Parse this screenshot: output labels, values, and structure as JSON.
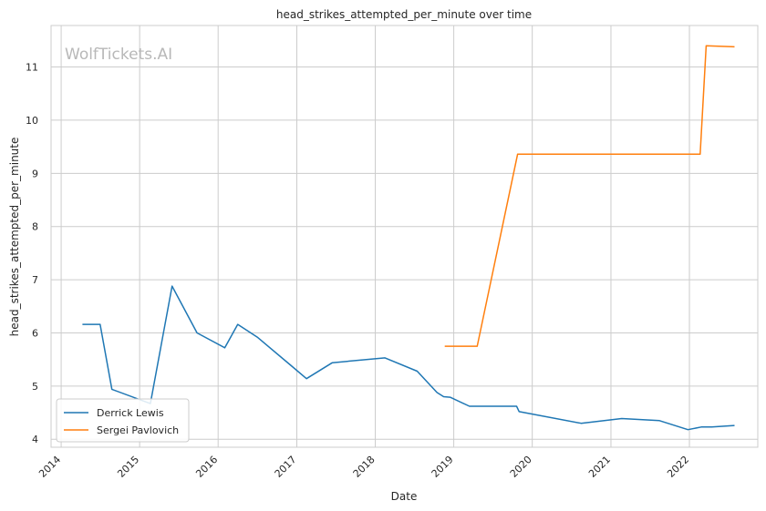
{
  "chart_data": {
    "type": "line",
    "title": "head_strikes_attempted_per_minute over time",
    "xlabel": "Date",
    "ylabel": "head_strikes_attempted_per_minute",
    "watermark": "WolfTickets.AI",
    "xlim": [
      "2013-11-15",
      "2022-11-15"
    ],
    "ylim": [
      3.85,
      11.78
    ],
    "x_ticks": [
      "2014",
      "2015",
      "2016",
      "2017",
      "2018",
      "2019",
      "2020",
      "2021",
      "2022"
    ],
    "y_ticks": [
      4,
      5,
      6,
      7,
      8,
      9,
      10,
      11
    ],
    "grid": true,
    "legend_position": "lower-left",
    "series": [
      {
        "name": "Derrick Lewis",
        "color": "#1f77b4",
        "points": [
          [
            "2014-04-10",
            6.16
          ],
          [
            "2014-07-01",
            6.16
          ],
          [
            "2014-08-25",
            4.94
          ],
          [
            "2015-02-20",
            4.67
          ],
          [
            "2015-06-01",
            6.88
          ],
          [
            "2015-09-25",
            6.0
          ],
          [
            "2016-02-01",
            5.72
          ],
          [
            "2016-04-01",
            6.16
          ],
          [
            "2016-07-01",
            5.92
          ],
          [
            "2016-12-01",
            5.4
          ],
          [
            "2017-02-15",
            5.14
          ],
          [
            "2017-06-15",
            5.44
          ],
          [
            "2018-02-15",
            5.53
          ],
          [
            "2018-07-15",
            5.28
          ],
          [
            "2018-10-15",
            4.88
          ],
          [
            "2018-11-15",
            4.8
          ],
          [
            "2018-12-15",
            4.79
          ],
          [
            "2019-03-15",
            4.62
          ],
          [
            "2019-10-20",
            4.62
          ],
          [
            "2019-11-01",
            4.52
          ],
          [
            "2020-08-15",
            4.3
          ],
          [
            "2021-02-20",
            4.39
          ],
          [
            "2021-08-15",
            4.35
          ],
          [
            "2021-12-25",
            4.18
          ],
          [
            "2022-02-25",
            4.23
          ],
          [
            "2022-04-15",
            4.23
          ],
          [
            "2022-07-30",
            4.26
          ]
        ]
      },
      {
        "name": "Sergei Pavlovich",
        "color": "#ff7f0e",
        "points": [
          [
            "2018-11-20",
            5.75
          ],
          [
            "2019-04-20",
            5.75
          ],
          [
            "2019-10-25",
            9.36
          ],
          [
            "2022-02-20",
            9.36
          ],
          [
            "2022-03-20",
            11.4
          ],
          [
            "2022-07-30",
            11.38
          ]
        ]
      }
    ]
  }
}
